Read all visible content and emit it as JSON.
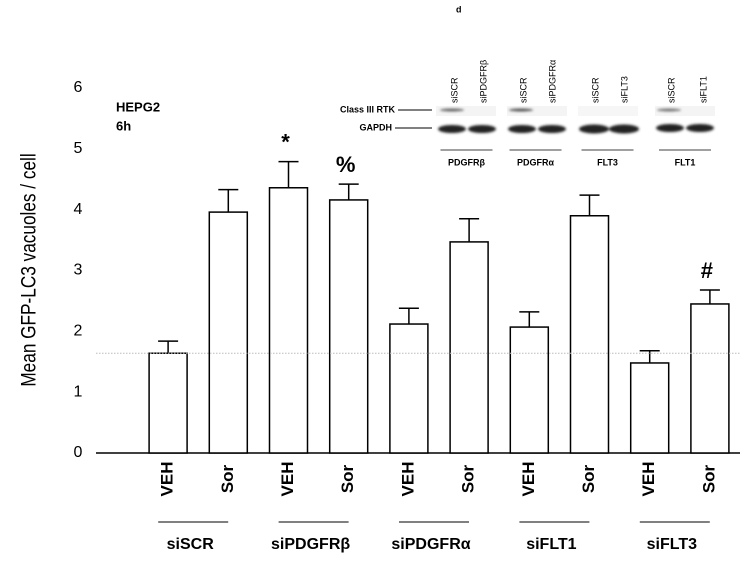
{
  "chart_data": {
    "type": "bar",
    "y_label": "Mean GFP-LC3 vacuoles / cell",
    "cell_line": "HEPG2",
    "time": "6h",
    "categories": [
      "VEH",
      "Sor",
      "VEH",
      "Sor",
      "VEH",
      "Sor",
      "VEH",
      "Sor",
      "VEH",
      "Sor"
    ],
    "groups": [
      "siSCR",
      "siPDGFRβ",
      "siPDGFRα",
      "siFLT1",
      "siFLT3"
    ],
    "values": [
      1.64,
      3.96,
      4.36,
      4.16,
      2.12,
      3.47,
      2.07,
      3.9,
      1.48,
      2.45
    ],
    "errors": [
      0.2,
      0.37,
      0.43,
      0.26,
      0.26,
      0.38,
      0.25,
      0.34,
      0.2,
      0.23
    ],
    "markers": [
      null,
      null,
      "*",
      "%",
      null,
      null,
      null,
      null,
      null,
      "#"
    ],
    "reference_line": 1.64,
    "color": "#ffffff",
    "ylim": [
      0,
      6
    ],
    "yticks": [
      0,
      1,
      2,
      3,
      4,
      5,
      6
    ],
    "grid": false
  },
  "inset": {
    "panel": "d",
    "rows": [
      "Class III RTK",
      "GAPDH"
    ],
    "lanes": [
      "siSCR",
      "siPDGFRβ",
      "siSCR",
      "siPDGFRα",
      "siSCR",
      "siFLT3",
      "siSCR",
      "siFLT1"
    ],
    "groups": [
      "PDGFRβ",
      "PDGFRα",
      "FLT3",
      "FLT1"
    ]
  }
}
